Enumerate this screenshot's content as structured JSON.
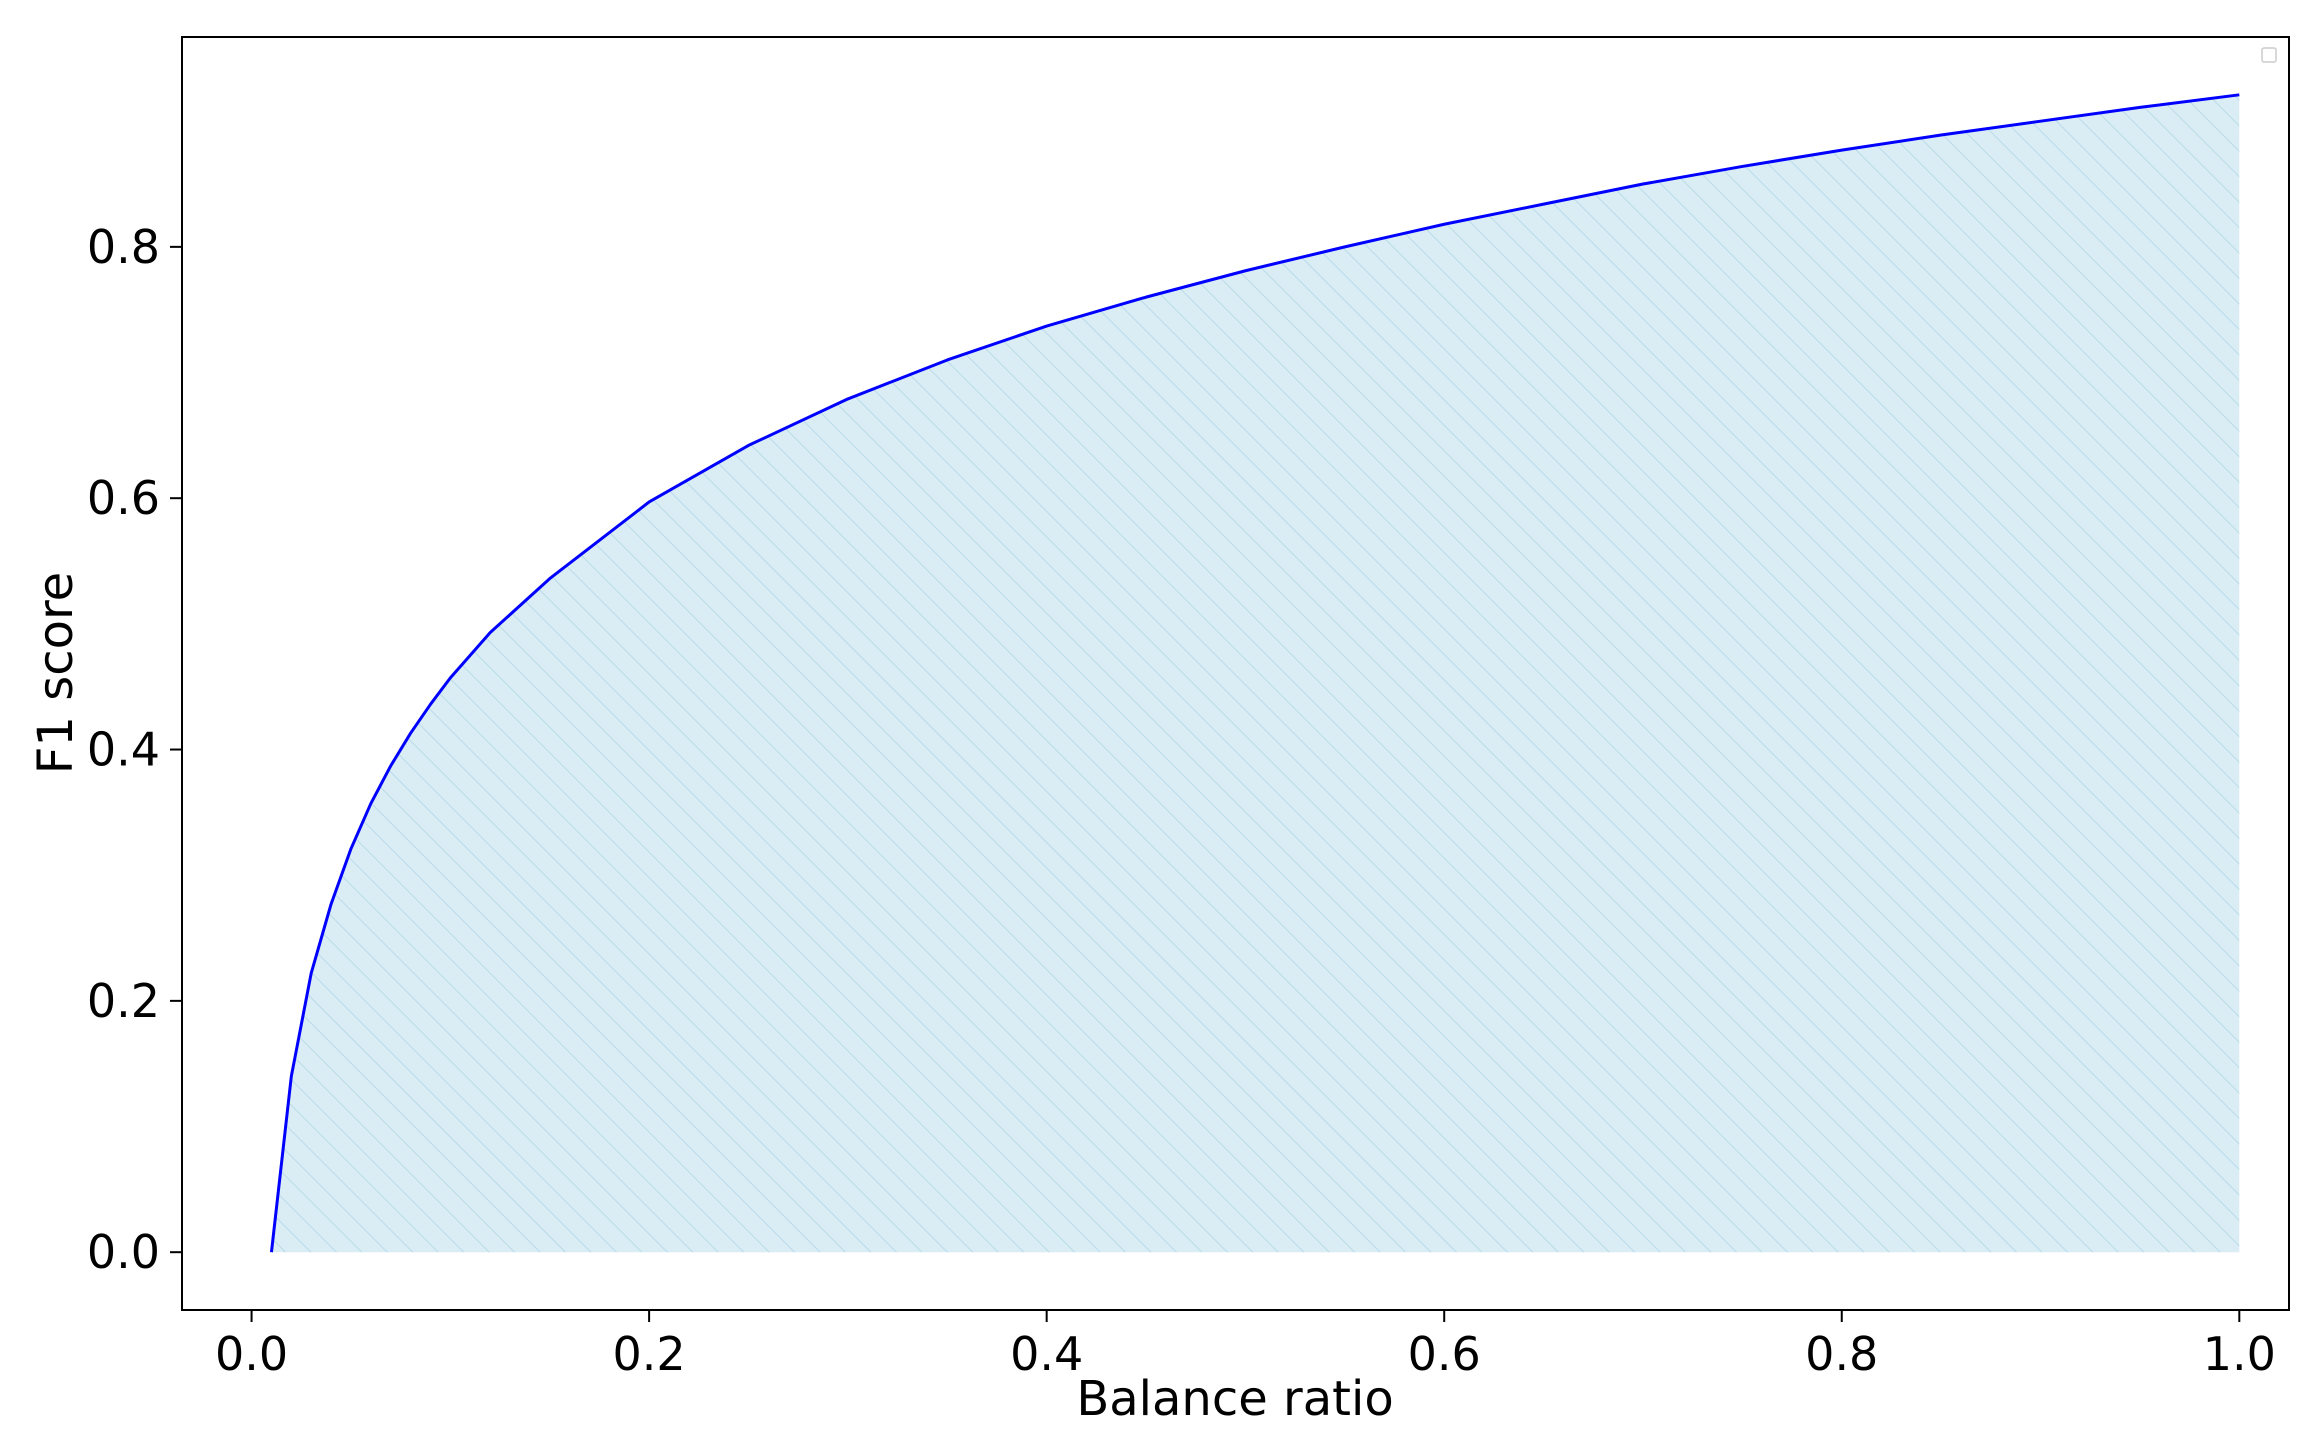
{
  "chart_data": {
    "type": "area",
    "xlabel": "Balance ratio",
    "ylabel": "F1 score",
    "xlim": [
      -0.035,
      1.025
    ],
    "ylim": [
      -0.046,
      0.967
    ],
    "x_ticks": [
      "0.0",
      "0.2",
      "0.4",
      "0.6",
      "0.8",
      "1.0"
    ],
    "y_ticks": [
      "0.0",
      "0.2",
      "0.4",
      "0.6",
      "0.8"
    ],
    "grid": false,
    "legend": "top-right (empty)",
    "fill": "hatched",
    "series": [
      {
        "x": [
          0.01,
          0.02,
          0.03,
          0.04,
          0.05,
          0.06,
          0.07,
          0.08,
          0.09,
          0.1,
          0.12,
          0.15,
          0.2,
          0.25,
          0.3,
          0.35,
          0.4,
          0.45,
          0.5,
          0.55,
          0.6,
          0.65,
          0.7,
          0.75,
          0.8,
          0.85,
          0.9,
          0.95,
          1.0
        ],
        "y": [
          0.0,
          0.14,
          0.222,
          0.277,
          0.321,
          0.357,
          0.387,
          0.413,
          0.436,
          0.457,
          0.493,
          0.536,
          0.597,
          0.642,
          0.679,
          0.71,
          0.737,
          0.76,
          0.781,
          0.8,
          0.818,
          0.834,
          0.85,
          0.864,
          0.877,
          0.889,
          0.9,
          0.911,
          0.921
        ]
      }
    ],
    "colors": {
      "line": "#0000ff",
      "fill": "#add8e6",
      "hatch": "#8fc3dc",
      "axes": "#000000"
    }
  }
}
